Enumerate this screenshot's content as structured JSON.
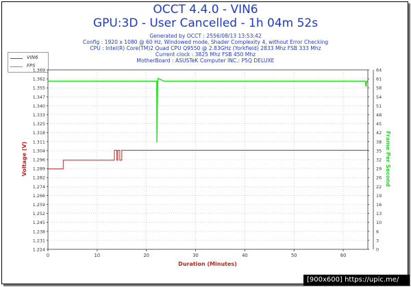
{
  "title": "OCCT 4.4.0 - VIN6",
  "subtitle": "GPU:3D - User Cancelled - 1h 04m 52s",
  "info_lines": [
    "Generated by OCCT : 2556/08/13 13:53:42",
    "Config : 1920 x 1080 @ 60 Hz, Windowed mode, Shader Complexity 4, without Error Checking",
    "CPU : Intel(R) Core(TM)2 Quad CPU Q9550 @ 2.83GHz (Yorkfield) 2833 Mhz FSB 333 Mhz",
    "Current clock : 3825 Mhz FSB 450 Mhz",
    "MotherBoard : ASUSTeK Computer INC.: P5Q DELUXE"
  ],
  "footer": "[900x600] https://upic.me/",
  "colors": {
    "title": "#1f39c8",
    "axis_label": "#c02020",
    "vin6": "#b03030",
    "fps": "#22dd22",
    "grid": "#bbbbbb",
    "plot_bg": "#ffffff"
  },
  "chart_data": {
    "type": "line",
    "xlabel": "Duration (Minutes)",
    "ylabel_left": "Voltage (V)",
    "ylabel_right": "Frame Per Second",
    "xlim": [
      0,
      65
    ],
    "x_ticks": [
      0,
      10,
      20,
      30,
      40,
      50,
      60
    ],
    "ylim_left": [
      1.224,
      1.369
    ],
    "y_ticks_left": [
      "1.224",
      "1.231",
      "1.238",
      "1.245",
      "1.252",
      "1.259",
      "1.266",
      "1.274",
      "1.282",
      "1.289",
      "1.296",
      "1.304",
      "1.311",
      "1.318",
      "1.325",
      "1.333",
      "1.340",
      "1.347",
      "1.355",
      "1.362",
      "1.369"
    ],
    "ylim_right": [
      0,
      64
    ],
    "y_ticks_right": [
      0,
      3,
      6,
      10,
      13,
      16,
      19,
      22,
      26,
      29,
      32,
      35,
      38,
      42,
      45,
      48,
      51,
      54,
      58,
      61,
      64
    ],
    "grid": true,
    "legend_position": "top-left, outside plot",
    "series": [
      {
        "name": "VIN6",
        "axis": "left",
        "x": [
          0,
          3.1,
          3.1,
          13.5,
          13.5,
          14.0,
          14.0,
          14.2,
          14.2,
          14.6,
          14.6,
          15.0,
          15.0,
          15.5,
          15.5,
          65
        ],
        "y": [
          1.289,
          1.289,
          1.296,
          1.296,
          1.304,
          1.304,
          1.296,
          1.296,
          1.304,
          1.304,
          1.296,
          1.296,
          1.304,
          1.304,
          1.304,
          1.304
        ]
      },
      {
        "name": "FPS",
        "axis": "right",
        "x": [
          0,
          22.0,
          22.1,
          22.15,
          22.3,
          22.4,
          23.5,
          64.5,
          64.6,
          64.8,
          65
        ],
        "y": [
          60,
          60,
          60,
          38,
          60,
          61,
          60,
          60,
          58,
          60,
          60
        ]
      }
    ]
  }
}
